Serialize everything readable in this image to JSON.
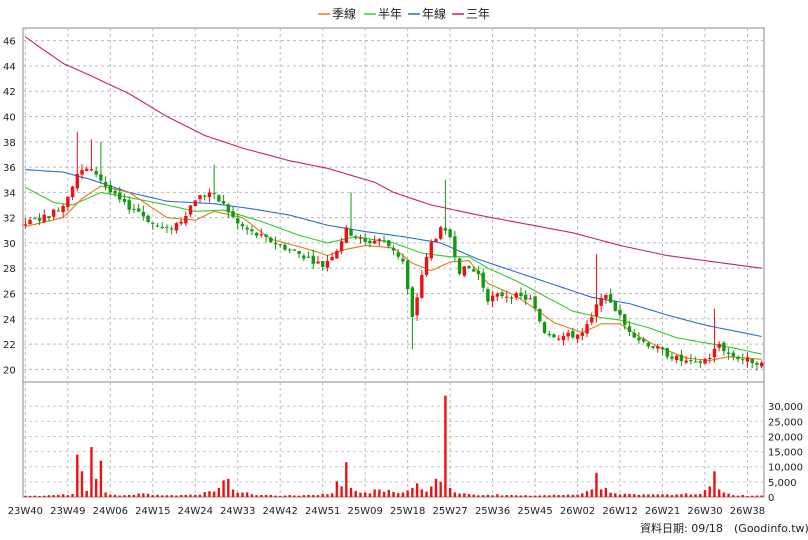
{
  "chart_data": {
    "type": "candlestick+line+bar",
    "legend": [
      {
        "label": "季線",
        "color": "#e07b1f"
      },
      {
        "label": "半年",
        "color": "#33cc33"
      },
      {
        "label": "年線",
        "color": "#2a6fd6"
      },
      {
        "label": "三年",
        "color": "#cc1f6a"
      }
    ],
    "price_axis": {
      "min": 19,
      "max": 47,
      "ticks": [
        20,
        22,
        24,
        26,
        28,
        30,
        32,
        34,
        36,
        38,
        40,
        42,
        44,
        46
      ]
    },
    "volume_axis": {
      "min": 0,
      "max": 38000,
      "ticks": [
        0,
        5000,
        10000,
        15000,
        20000,
        25000,
        30000
      ],
      "tick_labels": [
        "0",
        "5,000",
        "10,000",
        "15,000",
        "20,000",
        "25,000",
        "30,000"
      ]
    },
    "x_ticks": [
      "23W40",
      "23W49",
      "24W06",
      "24W15",
      "24W24",
      "24W33",
      "24W42",
      "24W51",
      "25W09",
      "25W18",
      "25W27",
      "25W36",
      "25W45",
      "26W02",
      "26W12",
      "26W21",
      "26W30",
      "26W38"
    ],
    "weeks": 157,
    "up_color": "#ee1111",
    "down_color": "#119911",
    "price_keys": [
      [
        0,
        31.5
      ],
      [
        5,
        32.2
      ],
      [
        8,
        33.0
      ],
      [
        11,
        35.5
      ],
      [
        13,
        35.8
      ],
      [
        15,
        35.5
      ],
      [
        18,
        34.0
      ],
      [
        21,
        33.0
      ],
      [
        24,
        32.5
      ],
      [
        27,
        31.5
      ],
      [
        30,
        31.0
      ],
      [
        33,
        31.8
      ],
      [
        36,
        33.5
      ],
      [
        39,
        34.0
      ],
      [
        42,
        33.0
      ],
      [
        45,
        31.5
      ],
      [
        48,
        30.8
      ],
      [
        51,
        30.3
      ],
      [
        54,
        29.8
      ],
      [
        57,
        29.3
      ],
      [
        60,
        28.8
      ],
      [
        63,
        28.2
      ],
      [
        66,
        29.5
      ],
      [
        68,
        31.0
      ],
      [
        70,
        30.5
      ],
      [
        72,
        30.0
      ],
      [
        75,
        30.3
      ],
      [
        78,
        29.5
      ],
      [
        80,
        28.5
      ],
      [
        82,
        24.0
      ],
      [
        84,
        27.5
      ],
      [
        86,
        30.0
      ],
      [
        88,
        31.0
      ],
      [
        90,
        30.5
      ],
      [
        92,
        27.8
      ],
      [
        94,
        28.0
      ],
      [
        96,
        27.5
      ],
      [
        98,
        25.6
      ],
      [
        101,
        25.9
      ],
      [
        104,
        25.8
      ],
      [
        107,
        25.5
      ],
      [
        110,
        23.0
      ],
      [
        113,
        22.6
      ],
      [
        116,
        22.7
      ],
      [
        118,
        22.8
      ],
      [
        120,
        24.0
      ],
      [
        122,
        25.9
      ],
      [
        124,
        25.4
      ],
      [
        127,
        23.5
      ],
      [
        130,
        22.4
      ],
      [
        133,
        21.8
      ],
      [
        136,
        21.2
      ],
      [
        139,
        20.7
      ],
      [
        142,
        20.4
      ],
      [
        145,
        21.0
      ],
      [
        147,
        22.0
      ],
      [
        149,
        21.2
      ],
      [
        152,
        20.8
      ],
      [
        155,
        20.6
      ],
      [
        156,
        20.4
      ]
    ],
    "vol_keys": [
      [
        0,
        400
      ],
      [
        5,
        600
      ],
      [
        8,
        900
      ],
      [
        10,
        1000
      ],
      [
        11,
        14000
      ],
      [
        12,
        8500
      ],
      [
        13,
        2000
      ],
      [
        14,
        16500
      ],
      [
        15,
        6000
      ],
      [
        16,
        12000
      ],
      [
        17,
        1500
      ],
      [
        18,
        800
      ],
      [
        20,
        500
      ],
      [
        25,
        1200
      ],
      [
        30,
        600
      ],
      [
        35,
        800
      ],
      [
        40,
        1800
      ],
      [
        41,
        3000
      ],
      [
        42,
        5500
      ],
      [
        43,
        6000
      ],
      [
        44,
        2500
      ],
      [
        48,
        900
      ],
      [
        55,
        500
      ],
      [
        60,
        700
      ],
      [
        65,
        1200
      ],
      [
        66,
        5200
      ],
      [
        67,
        3500
      ],
      [
        68,
        11500
      ],
      [
        69,
        3000
      ],
      [
        70,
        2000
      ],
      [
        72,
        1500
      ],
      [
        75,
        2500
      ],
      [
        80,
        1500
      ],
      [
        82,
        3000
      ],
      [
        83,
        4500
      ],
      [
        84,
        2500
      ],
      [
        85,
        1800
      ],
      [
        86,
        3500
      ],
      [
        87,
        6000
      ],
      [
        88,
        5000
      ],
      [
        89,
        33500
      ],
      [
        90,
        3000
      ],
      [
        91,
        1500
      ],
      [
        95,
        800
      ],
      [
        100,
        900
      ],
      [
        105,
        500
      ],
      [
        110,
        600
      ],
      [
        115,
        800
      ],
      [
        118,
        1200
      ],
      [
        120,
        2500
      ],
      [
        121,
        8000
      ],
      [
        122,
        2500
      ],
      [
        123,
        3000
      ],
      [
        125,
        1200
      ],
      [
        130,
        700
      ],
      [
        135,
        900
      ],
      [
        140,
        1200
      ],
      [
        143,
        1000
      ],
      [
        145,
        3500
      ],
      [
        146,
        8500
      ],
      [
        147,
        2500
      ],
      [
        148,
        1500
      ],
      [
        150,
        600
      ],
      [
        156,
        500
      ]
    ],
    "ma_quarter_keys": [
      [
        0,
        31.3
      ],
      [
        8,
        32.0
      ],
      [
        12,
        33.5
      ],
      [
        16,
        34.5
      ],
      [
        22,
        34.0
      ],
      [
        30,
        32.0
      ],
      [
        36,
        31.8
      ],
      [
        40,
        32.5
      ],
      [
        46,
        32.0
      ],
      [
        52,
        30.3
      ],
      [
        60,
        29.5
      ],
      [
        64,
        29.0
      ],
      [
        68,
        29.5
      ],
      [
        72,
        29.8
      ],
      [
        78,
        29.6
      ],
      [
        82,
        28.4
      ],
      [
        86,
        27.8
      ],
      [
        90,
        28.5
      ],
      [
        94,
        28.6
      ],
      [
        98,
        26.8
      ],
      [
        104,
        25.8
      ],
      [
        108,
        24.8
      ],
      [
        112,
        23.7
      ],
      [
        118,
        22.9
      ],
      [
        122,
        23.6
      ],
      [
        126,
        23.6
      ],
      [
        130,
        22.6
      ],
      [
        134,
        21.8
      ],
      [
        140,
        20.9
      ],
      [
        145,
        20.7
      ],
      [
        149,
        21.0
      ],
      [
        156,
        20.8
      ]
    ],
    "ma_half_keys": [
      [
        0,
        34.4
      ],
      [
        6,
        33.2
      ],
      [
        10,
        33.0
      ],
      [
        16,
        34.0
      ],
      [
        22,
        33.6
      ],
      [
        30,
        33.0
      ],
      [
        36,
        32.5
      ],
      [
        42,
        32.6
      ],
      [
        50,
        31.7
      ],
      [
        58,
        30.6
      ],
      [
        64,
        30.0
      ],
      [
        70,
        30.5
      ],
      [
        78,
        30.0
      ],
      [
        84,
        29.2
      ],
      [
        90,
        28.9
      ],
      [
        94,
        28.9
      ],
      [
        98,
        28.0
      ],
      [
        104,
        27.0
      ],
      [
        110,
        25.8
      ],
      [
        116,
        24.6
      ],
      [
        122,
        24.1
      ],
      [
        126,
        23.9
      ],
      [
        132,
        23.3
      ],
      [
        138,
        22.5
      ],
      [
        144,
        22.1
      ],
      [
        150,
        21.7
      ],
      [
        156,
        21.2
      ]
    ],
    "ma_year_keys": [
      [
        0,
        35.8
      ],
      [
        8,
        35.6
      ],
      [
        14,
        35.0
      ],
      [
        22,
        34.0
      ],
      [
        30,
        33.3
      ],
      [
        40,
        33.1
      ],
      [
        48,
        32.7
      ],
      [
        56,
        32.2
      ],
      [
        64,
        31.4
      ],
      [
        72,
        30.9
      ],
      [
        80,
        30.5
      ],
      [
        88,
        30.0
      ],
      [
        96,
        28.7
      ],
      [
        104,
        27.7
      ],
      [
        112,
        26.7
      ],
      [
        120,
        25.7
      ],
      [
        128,
        25.2
      ],
      [
        136,
        24.3
      ],
      [
        144,
        23.5
      ],
      [
        152,
        22.9
      ],
      [
        156,
        22.6
      ]
    ],
    "ma_3y_keys": [
      [
        0,
        46.3
      ],
      [
        3,
        45.5
      ],
      [
        8,
        44.2
      ],
      [
        14,
        43.2
      ],
      [
        22,
        41.8
      ],
      [
        30,
        40.0
      ],
      [
        38,
        38.5
      ],
      [
        46,
        37.5
      ],
      [
        56,
        36.5
      ],
      [
        64,
        35.9
      ],
      [
        74,
        34.8
      ],
      [
        78,
        34.0
      ],
      [
        86,
        33.0
      ],
      [
        96,
        32.2
      ],
      [
        106,
        31.5
      ],
      [
        116,
        30.8
      ],
      [
        126,
        29.8
      ],
      [
        136,
        29.0
      ],
      [
        146,
        28.5
      ],
      [
        156,
        28.0
      ]
    ],
    "spikes": [
      [
        11,
        38.8
      ],
      [
        14,
        38.2
      ],
      [
        16,
        38.0
      ],
      [
        40,
        36.2
      ],
      [
        69,
        34.0
      ],
      [
        82,
        21.6
      ],
      [
        89,
        35.0
      ],
      [
        121,
        29.1
      ],
      [
        146,
        24.8
      ]
    ]
  },
  "footer": {
    "label": "資料日期: 09/18",
    "source": "(Goodinfo.tw)"
  }
}
